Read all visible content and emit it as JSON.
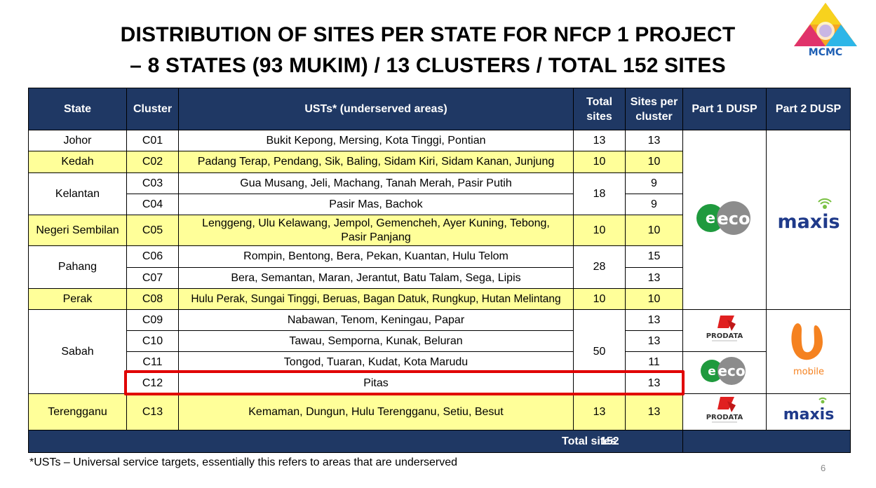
{
  "title": {
    "line1": "DISTRIBUTION OF SITES PER STATE FOR NFCP 1 PROJECT",
    "line2": "– 8 STATES (93 MUKIM) / 13 CLUSTERS / TOTAL 152 SITES"
  },
  "logo": {
    "text": "MCMC"
  },
  "table": {
    "headers": {
      "state": "State",
      "cluster": "Cluster",
      "usts": "USTs* (underserved areas)",
      "total_sites_1": "Total",
      "total_sites_2": "sites",
      "sites_per_cluster_1": "Sites per",
      "sites_per_cluster_2": "cluster",
      "part1": "Part 1 DUSP",
      "part2": "Part 2 DUSP"
    },
    "rows": [
      {
        "state": "Johor",
        "cluster": "C01",
        "usts": "Bukit Kepong, Mersing, Kota Tinggi, Pontian",
        "total": "13",
        "per": "13"
      },
      {
        "state": "Kedah",
        "cluster": "C02",
        "usts": "Padang Terap, Pendang, Sik, Baling, Sidam Kiri, Sidam Kanan, Junjung",
        "total": "10",
        "per": "10"
      },
      {
        "state": "Kelantan",
        "cluster": "C03",
        "usts": "Gua Musang, Jeli, Machang, Tanah Merah, Pasir Putih",
        "total": "18",
        "per": "9"
      },
      {
        "cluster": "C04",
        "usts": "Pasir Mas, Bachok",
        "per": "9"
      },
      {
        "state": "Negeri Sembilan",
        "cluster": "C05",
        "usts_1": "Lenggeng, Ulu Kelawang, Jempol, Gemencheh, Ayer Kuning, Tebong,",
        "usts_2": "Pasir Panjang",
        "total": "10",
        "per": "10"
      },
      {
        "state": "Pahang",
        "cluster": "C06",
        "usts": "Rompin, Bentong, Bera, Pekan, Kuantan, Hulu Telom",
        "total": "28",
        "per": "15"
      },
      {
        "cluster": "C07",
        "usts": "Bera, Semantan, Maran, Jerantut, Batu Talam, Sega, Lipis",
        "per": "13"
      },
      {
        "state": "Perak",
        "cluster": "C08",
        "usts": "Hulu Perak, Sungai Tinggi, Beruas, Bagan Datuk, Rungkup, Hutan Melintang",
        "total": "10",
        "per": "10"
      },
      {
        "state": "Sabah",
        "cluster": "C09",
        "usts": "Nabawan, Tenom, Keningau, Papar",
        "total": "50",
        "per": "13"
      },
      {
        "cluster": "C10",
        "usts": "Tawau, Semporna, Kunak, Beluran",
        "per": "13"
      },
      {
        "cluster": "C11",
        "usts": "Tongod, Tuaran, Kudat, Kota Marudu",
        "per": "11"
      },
      {
        "cluster": "C12",
        "usts": "Pitas",
        "per": "13"
      },
      {
        "state": "Terengganu",
        "cluster": "C13",
        "usts": "Kemaman, Dungun, Hulu Terengganu, Setiu, Besut",
        "total": "13",
        "per": "13"
      }
    ],
    "total_label": "Total sites",
    "total_value": "152"
  },
  "providers": {
    "eco": "eco",
    "maxis": "maxis",
    "prodata": "PRODATA",
    "umobile": "mobile"
  },
  "colors": {
    "header_bg": "#1f3864",
    "yellow_row": "#ffff99",
    "highlight": "#e00000"
  },
  "footnote": "*USTs – Universal service targets, essentially this refers to areas that are underserved",
  "page_number": "6"
}
